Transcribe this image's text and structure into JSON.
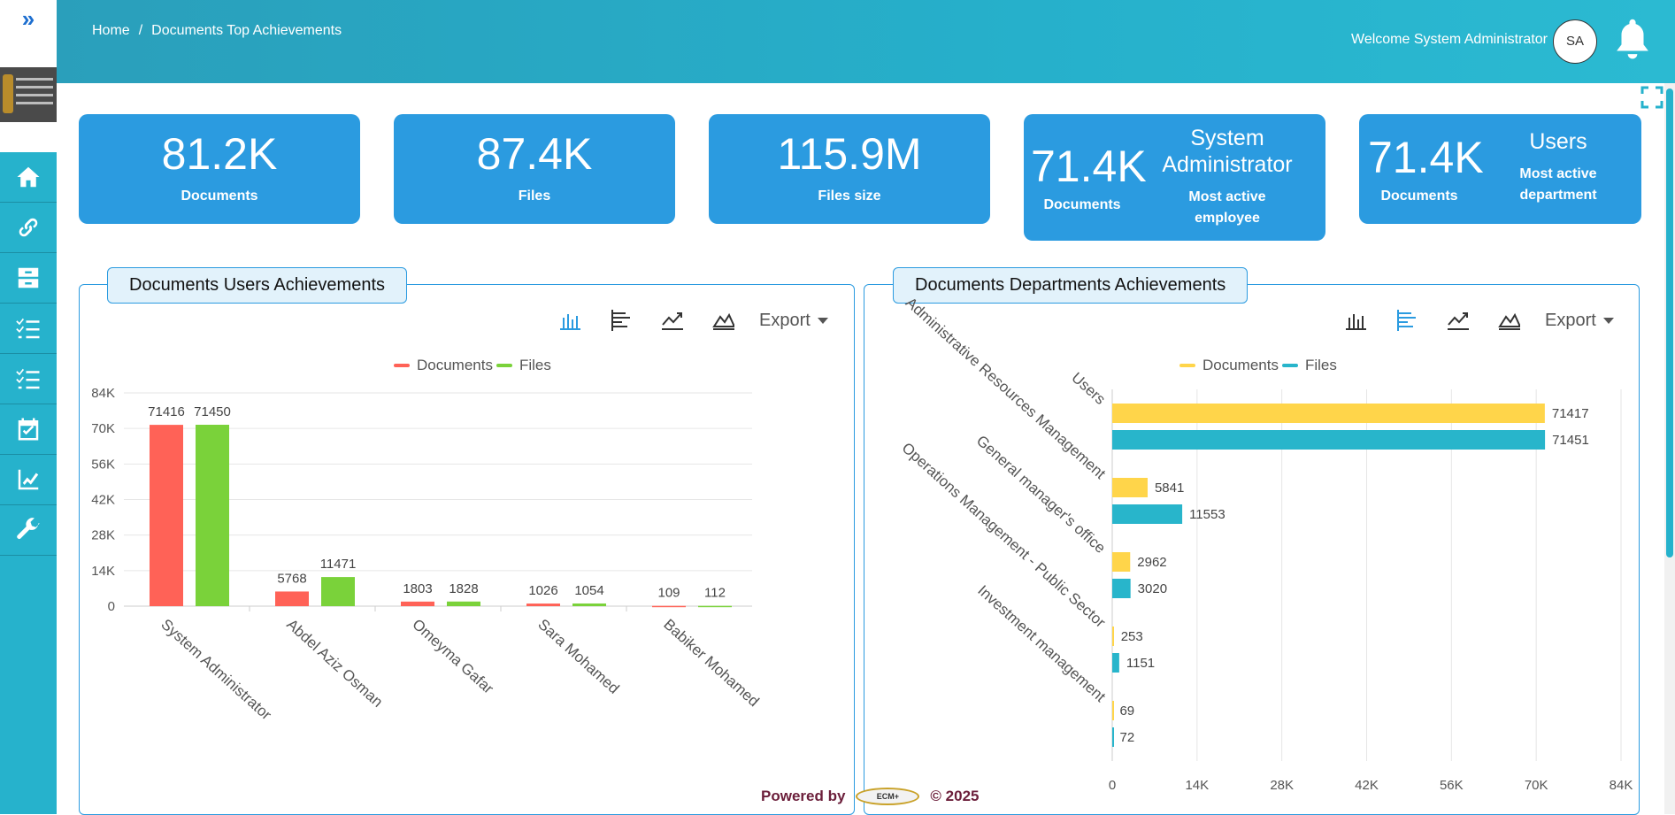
{
  "breadcrumb": {
    "home": "Home",
    "separator": "/",
    "current": "Documents Top Achievements"
  },
  "header": {
    "welcome": "Welcome System Administrator",
    "avatar_initials": "SA"
  },
  "sidebar": {
    "items": [
      {
        "icon": "home-icon"
      },
      {
        "icon": "link-icon"
      },
      {
        "icon": "archive-icon"
      },
      {
        "icon": "checklist-icon"
      },
      {
        "icon": "checklist-icon"
      },
      {
        "icon": "calendar-check-icon"
      },
      {
        "icon": "chart-line-icon"
      },
      {
        "icon": "wrench-icon"
      }
    ]
  },
  "stats": {
    "documents": {
      "value": "81.2K",
      "label": "Documents"
    },
    "files": {
      "value": "87.4K",
      "label": "Files"
    },
    "files_size": {
      "value": "115.9M",
      "label": "Files size"
    },
    "employee": {
      "value": "71.4K",
      "label": "Documents",
      "name": "System Administrator",
      "caption": "Most active employee"
    },
    "department": {
      "value": "71.4K",
      "label": "Documents",
      "name": "Users",
      "caption": "Most active department"
    }
  },
  "panels": {
    "users": {
      "title": "Documents Users Achievements",
      "export": "Export"
    },
    "departments": {
      "title": "Documents Departments Achievements",
      "export": "Export"
    }
  },
  "footer": {
    "powered_by": "Powered by",
    "logo_text": "ECM+",
    "copyright": "© 2025"
  },
  "colors": {
    "accent": "#2b9be0",
    "sidebar": "#26b2cc",
    "documents_red": "#ff6257",
    "files_green": "#7ad23a",
    "documents_yellow": "#ffd54a",
    "files_teal": "#28b5cb"
  },
  "chart_data": [
    {
      "type": "bar",
      "categories": [
        "System Administrator",
        "Abdel Aziz Osman",
        "Omeyma Gafar",
        "Sara Mohamed",
        "Babiker Mohamed"
      ],
      "series": [
        {
          "name": "Documents",
          "values": [
            71416,
            5768,
            1803,
            1026,
            109
          ]
        },
        {
          "name": "Files",
          "values": [
            71450,
            11471,
            1828,
            1054,
            112
          ]
        }
      ],
      "ylim": [
        0,
        84000
      ],
      "yticks": [
        "0",
        "14K",
        "28K",
        "42K",
        "56K",
        "70K",
        "84K"
      ],
      "legend": "top-center",
      "grid": true
    },
    {
      "type": "bar",
      "orientation": "horizontal",
      "categories": [
        "Users",
        "Administrative Resources Management",
        "General manager's office",
        "Operations Management - Public Sector",
        "Investment management"
      ],
      "series": [
        {
          "name": "Documents",
          "values": [
            71417,
            5841,
            2962,
            253,
            69
          ]
        },
        {
          "name": "Files",
          "values": [
            71451,
            11553,
            3020,
            1151,
            72
          ]
        }
      ],
      "xlim": [
        0,
        84000
      ],
      "xticks": [
        "0",
        "14K",
        "28K",
        "42K",
        "56K",
        "70K",
        "84K"
      ],
      "legend": "top-center",
      "grid": true
    }
  ]
}
